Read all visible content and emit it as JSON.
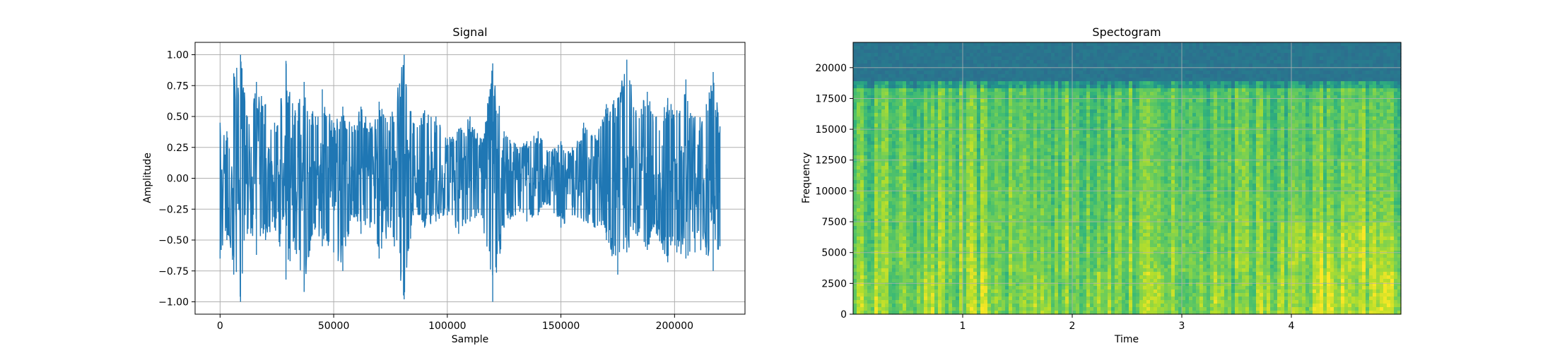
{
  "chart_data": [
    {
      "type": "line",
      "title": "Signal",
      "xlabel": "Sample",
      "ylabel": "Amplitude",
      "xlim": [
        -11000,
        231000
      ],
      "ylim": [
        -1.1,
        1.1
      ],
      "xticks": [
        0,
        50000,
        100000,
        150000,
        200000
      ],
      "xtick_labels": [
        "0",
        "50000",
        "100000",
        "150000",
        "200000"
      ],
      "yticks": [
        -1.0,
        -0.75,
        -0.5,
        -0.25,
        0.0,
        0.25,
        0.5,
        0.75,
        1.0
      ],
      "ytick_labels": [
        "−1.00",
        "−0.75",
        "−0.50",
        "−0.25",
        "0.00",
        "0.25",
        "0.50",
        "0.75",
        "1.00"
      ],
      "grid": true,
      "color": "#1f77b4",
      "n_samples": 220500,
      "envelope_points": [
        [
          0,
          0.45,
          -0.65
        ],
        [
          3000,
          0.38,
          -0.5
        ],
        [
          6000,
          0.85,
          -0.78
        ],
        [
          9000,
          1.0,
          -1.0
        ],
        [
          12000,
          0.5,
          -0.45
        ],
        [
          16000,
          0.78,
          -0.62
        ],
        [
          20000,
          0.6,
          -0.5
        ],
        [
          24000,
          0.45,
          -0.4
        ],
        [
          29000,
          0.95,
          -0.82
        ],
        [
          33000,
          0.55,
          -0.58
        ],
        [
          37000,
          0.78,
          -0.92
        ],
        [
          42000,
          0.5,
          -0.4
        ],
        [
          45000,
          0.72,
          -0.55
        ],
        [
          50000,
          0.45,
          -0.6
        ],
        [
          54000,
          0.58,
          -0.75
        ],
        [
          58000,
          0.42,
          -0.3
        ],
        [
          62000,
          0.58,
          -0.45
        ],
        [
          66000,
          0.45,
          -0.4
        ],
        [
          70000,
          0.62,
          -0.65
        ],
        [
          75000,
          0.5,
          -0.4
        ],
        [
          81000,
          1.0,
          -0.98
        ],
        [
          85000,
          0.45,
          -0.3
        ],
        [
          90000,
          0.55,
          -0.4
        ],
        [
          95000,
          0.5,
          -0.35
        ],
        [
          100000,
          0.32,
          -0.3
        ],
        [
          105000,
          0.4,
          -0.45
        ],
        [
          110000,
          0.5,
          -0.35
        ],
        [
          115000,
          0.32,
          -0.3
        ],
        [
          120000,
          0.93,
          -1.0
        ],
        [
          125000,
          0.38,
          -0.4
        ],
        [
          130000,
          0.28,
          -0.3
        ],
        [
          135000,
          0.3,
          -0.35
        ],
        [
          140000,
          0.38,
          -0.3
        ],
        [
          145000,
          0.22,
          -0.22
        ],
        [
          150000,
          0.3,
          -0.4
        ],
        [
          155000,
          0.25,
          -0.3
        ],
        [
          160000,
          0.45,
          -0.35
        ],
        [
          165000,
          0.35,
          -0.4
        ],
        [
          170000,
          0.6,
          -0.5
        ],
        [
          175000,
          0.65,
          -0.78
        ],
        [
          179000,
          0.96,
          -0.6
        ],
        [
          183000,
          0.55,
          -0.45
        ],
        [
          188000,
          0.7,
          -0.58
        ],
        [
          192000,
          0.5,
          -0.45
        ],
        [
          197000,
          0.65,
          -0.68
        ],
        [
          201000,
          0.55,
          -0.6
        ],
        [
          205000,
          0.8,
          -0.65
        ],
        [
          209000,
          0.5,
          -0.6
        ],
        [
          214000,
          0.6,
          -0.62
        ],
        [
          217000,
          0.86,
          -0.75
        ],
        [
          220000,
          0.42,
          -0.55
        ]
      ]
    },
    {
      "type": "heatmap",
      "title": "Spectogram",
      "xlabel": "Time",
      "ylabel": "Frequency",
      "xlim": [
        0,
        5.0
      ],
      "ylim": [
        0,
        22050
      ],
      "xticks": [
        1,
        2,
        3,
        4
      ],
      "xtick_labels": [
        "1",
        "2",
        "3",
        "4"
      ],
      "yticks": [
        0,
        2500,
        5000,
        7500,
        10000,
        12500,
        15000,
        17500,
        20000
      ],
      "ytick_labels": [
        "0",
        "2500",
        "5000",
        "7500",
        "10000",
        "12500",
        "15000",
        "17500",
        "20000"
      ],
      "grid": true,
      "colormap": "viridis",
      "cutoff_frequency": 19000,
      "low_colour": "#2c6e8e",
      "high_colour": "#d2e21b"
    }
  ]
}
